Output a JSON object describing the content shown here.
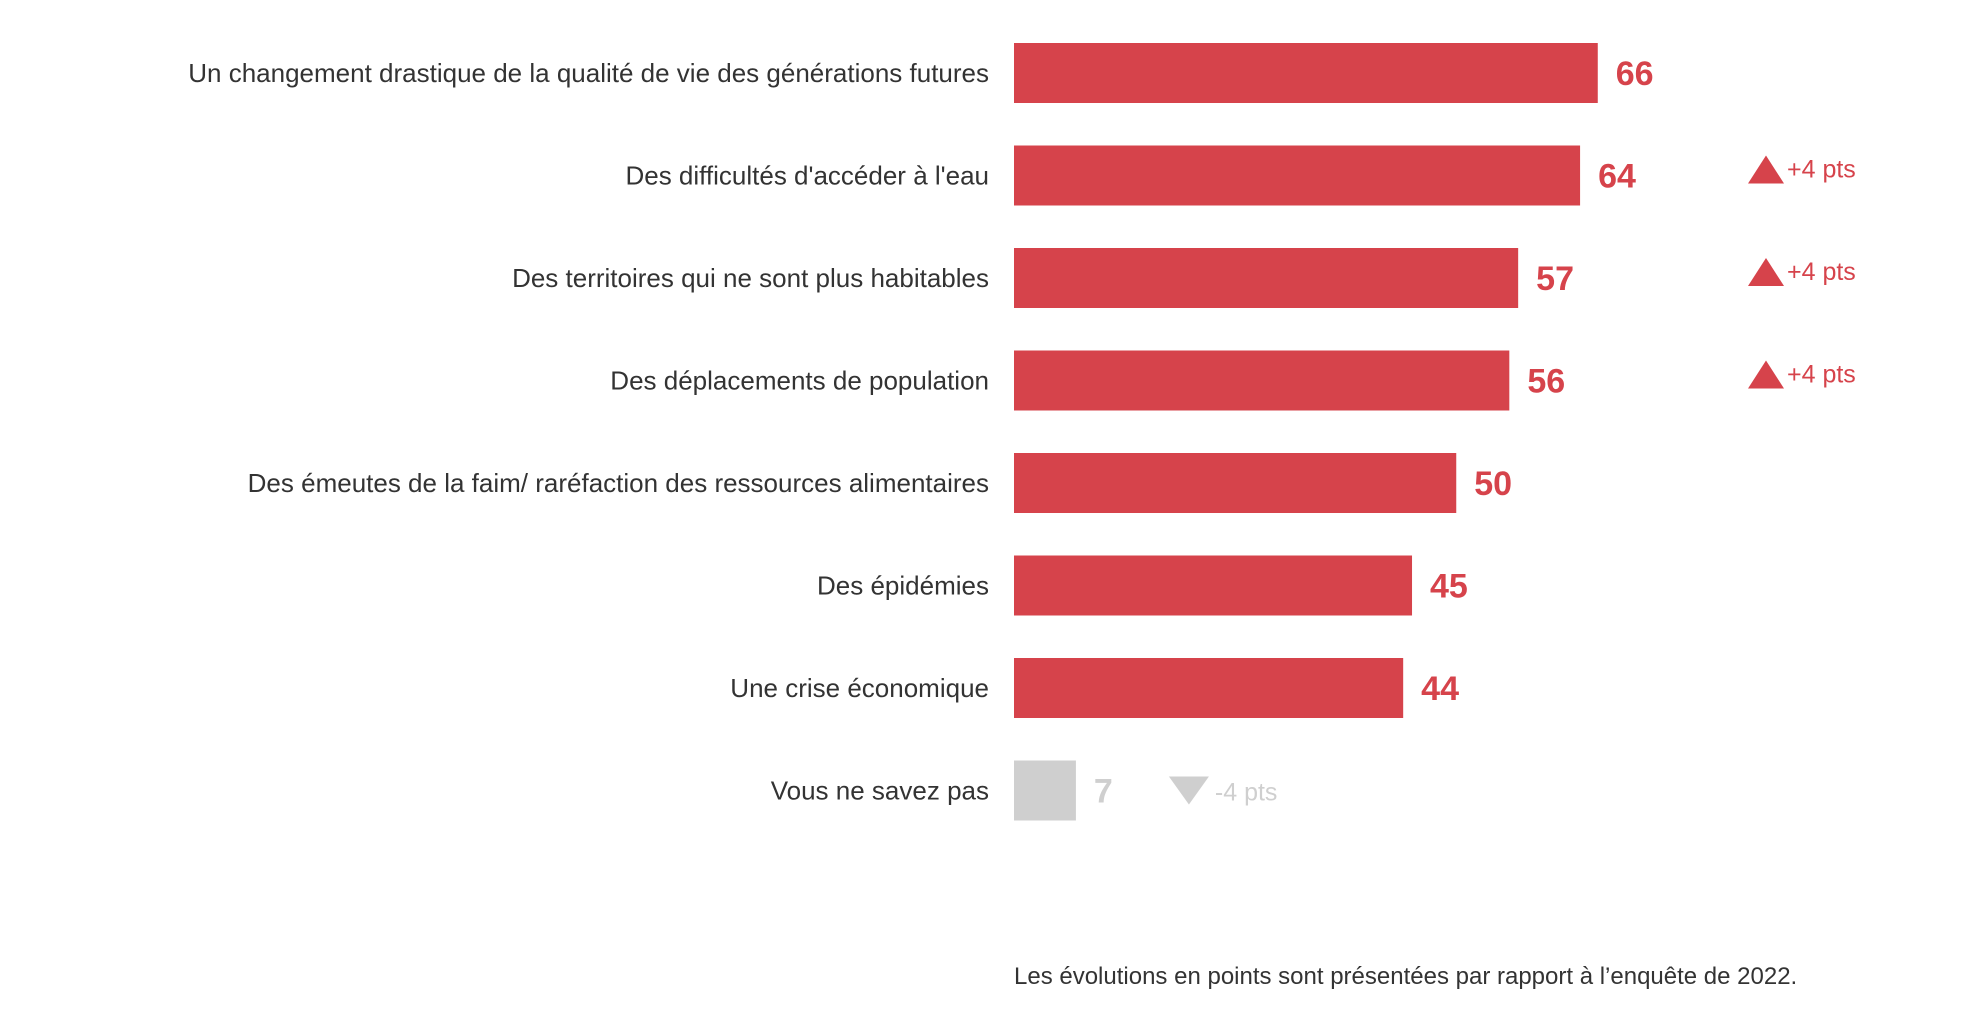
{
  "chart_data": {
    "type": "bar",
    "orientation": "horizontal",
    "categories": [
      "Un changement drastique de la qualité de vie des générations futures",
      "Des difficultés d'accéder à l'eau",
      "Des territoires qui ne sont plus habitables",
      "Des déplacements de population",
      "Des émeutes de la faim/ raréfaction des ressources alimentaires",
      "Des épidémies",
      "Une crise économique",
      "Vous ne savez pas"
    ],
    "values": [
      66,
      64,
      57,
      56,
      50,
      45,
      44,
      7
    ],
    "value_labels": [
      "66",
      "64",
      "57",
      "56",
      "50",
      "45",
      "44",
      "7"
    ],
    "changes": [
      "",
      "+4 pts",
      "+4 pts",
      "+4 pts",
      "",
      "",
      "",
      "-4 pts"
    ],
    "change_direction": [
      "",
      "up",
      "up",
      "up",
      "",
      "",
      "",
      "down"
    ],
    "bar_colors": [
      "#d6434b",
      "#d6434b",
      "#d6434b",
      "#d6434b",
      "#d6434b",
      "#d6434b",
      "#d6434b",
      "#cfcfcf"
    ],
    "xlim": [
      0,
      66
    ],
    "colors": {
      "accent": "#d6434b",
      "muted": "#cfcfcf",
      "text": "#333333"
    }
  },
  "footnote": "Les évolutions en points sont présentées par rapport à l’enquête de 2022."
}
